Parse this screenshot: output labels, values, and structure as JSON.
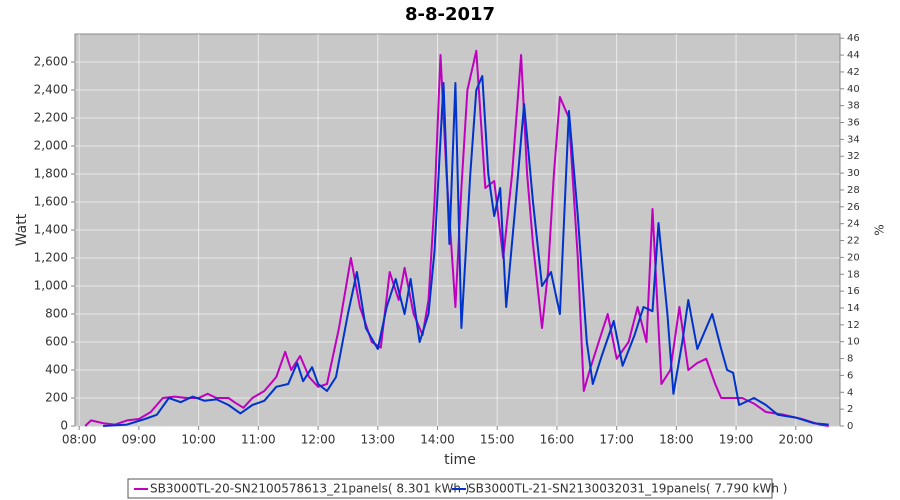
{
  "chart_data": {
    "type": "line",
    "title": "8-8-2017",
    "x_label": "time",
    "y_label": "Watt",
    "y2_label": "%",
    "xlim": [
      7.93,
      20.74
    ],
    "xticks": [
      {
        "value": 8,
        "label": "08:00"
      },
      {
        "value": 9,
        "label": "09:00"
      },
      {
        "value": 10,
        "label": "10:00"
      },
      {
        "value": 11,
        "label": "11:00"
      },
      {
        "value": 12,
        "label": "12:00"
      },
      {
        "value": 13,
        "label": "13:00"
      },
      {
        "value": 14,
        "label": "14:00"
      },
      {
        "value": 15,
        "label": "15:00"
      },
      {
        "value": 16,
        "label": "16:00"
      },
      {
        "value": 17,
        "label": "17:00"
      },
      {
        "value": 18,
        "label": "18:00"
      },
      {
        "value": 19,
        "label": "19:00"
      },
      {
        "value": 20,
        "label": "20:00"
      }
    ],
    "ylim": [
      0,
      2800
    ],
    "yticks": [
      0,
      200,
      400,
      600,
      800,
      {
        "value": 1000,
        "label": "1,000"
      },
      {
        "value": 1200,
        "label": "1,200"
      },
      {
        "value": 1400,
        "label": "1,400"
      },
      {
        "value": 1600,
        "label": "1,600"
      },
      {
        "value": 1800,
        "label": "1,800"
      },
      {
        "value": 2000,
        "label": "2,000"
      },
      {
        "value": 2200,
        "label": "2,200"
      },
      {
        "value": 2400,
        "label": "2,400"
      },
      {
        "value": 2600,
        "label": "2,600"
      }
    ],
    "y2lim": [
      0,
      46.5
    ],
    "y2ticks": [
      0,
      2,
      4,
      6,
      8,
      10,
      12,
      14,
      16,
      18,
      20,
      22,
      24,
      26,
      28,
      30,
      32,
      34,
      36,
      38,
      40,
      42,
      44,
      46
    ],
    "grid": true,
    "legend": "bottom",
    "series": [
      {
        "name": "SB3000TL-20-SN2100578613_21panels( 8.301 kWh )",
        "color": "#c000c0",
        "x": [
          8.1,
          8.2,
          8.4,
          8.6,
          8.8,
          9.0,
          9.2,
          9.4,
          9.6,
          9.8,
          10.0,
          10.15,
          10.3,
          10.5,
          10.6,
          10.75,
          10.9,
          11.1,
          11.3,
          11.45,
          11.55,
          11.7,
          11.85,
          12.0,
          12.15,
          12.35,
          12.55,
          12.7,
          12.9,
          13.05,
          13.2,
          13.35,
          13.45,
          13.6,
          13.75,
          13.85,
          13.95,
          14.05,
          14.15,
          14.3,
          14.4,
          14.5,
          14.65,
          14.8,
          14.95,
          15.1,
          15.25,
          15.4,
          15.5,
          15.6,
          15.75,
          15.85,
          15.95,
          16.05,
          16.2,
          16.35,
          16.45,
          16.55,
          16.7,
          16.85,
          17.0,
          17.2,
          17.35,
          17.5,
          17.6,
          17.75,
          17.9,
          18.05,
          18.2,
          18.35,
          18.5,
          18.65,
          18.75,
          18.9,
          19.1,
          19.3,
          19.5,
          19.8,
          20.1,
          20.4,
          20.55
        ],
        "values": [
          0,
          40,
          20,
          10,
          40,
          50,
          100,
          200,
          210,
          200,
          200,
          230,
          200,
          200,
          170,
          130,
          200,
          250,
          350,
          530,
          400,
          500,
          350,
          280,
          300,
          700,
          1200,
          850,
          600,
          560,
          1100,
          900,
          1130,
          800,
          650,
          900,
          1600,
          2650,
          1800,
          850,
          1700,
          2400,
          2680,
          1700,
          1750,
          1200,
          1800,
          2650,
          1800,
          1300,
          700,
          1100,
          1800,
          2350,
          2200,
          1200,
          250,
          400,
          600,
          800,
          480,
          600,
          850,
          600,
          1550,
          300,
          400,
          850,
          400,
          450,
          480,
          300,
          200,
          200,
          200,
          160,
          100,
          80,
          50,
          10,
          0
        ]
      },
      {
        "name": "SB3000TL-21-SN2130032031_19panels( 7.790 kWh )",
        "color": "#0033cc",
        "x": [
          8.4,
          8.8,
          9.1,
          9.3,
          9.5,
          9.7,
          9.9,
          10.1,
          10.3,
          10.5,
          10.7,
          10.9,
          11.1,
          11.3,
          11.5,
          11.65,
          11.75,
          11.9,
          12.0,
          12.15,
          12.3,
          12.5,
          12.65,
          12.8,
          13.0,
          13.15,
          13.3,
          13.45,
          13.55,
          13.7,
          13.85,
          13.95,
          14.1,
          14.2,
          14.3,
          14.4,
          14.55,
          14.65,
          14.75,
          14.85,
          14.95,
          15.05,
          15.15,
          15.3,
          15.45,
          15.6,
          15.75,
          15.9,
          16.05,
          16.2,
          16.35,
          16.5,
          16.6,
          16.75,
          16.95,
          17.1,
          17.3,
          17.45,
          17.6,
          17.7,
          17.85,
          17.95,
          18.1,
          18.2,
          18.35,
          18.45,
          18.6,
          18.75,
          18.85,
          18.95,
          19.05,
          19.3,
          19.5,
          19.7,
          20.0,
          20.3,
          20.55
        ],
        "values": [
          0,
          10,
          50,
          80,
          200,
          170,
          210,
          180,
          190,
          150,
          90,
          150,
          180,
          280,
          300,
          450,
          320,
          420,
          300,
          250,
          350,
          800,
          1100,
          700,
          550,
          850,
          1050,
          800,
          1050,
          600,
          800,
          1250,
          2450,
          1300,
          2450,
          700,
          1800,
          2400,
          2500,
          1800,
          1500,
          1700,
          850,
          1550,
          2300,
          1600,
          1000,
          1100,
          800,
          2250,
          1500,
          600,
          300,
          500,
          750,
          430,
          650,
          850,
          820,
          1450,
          800,
          230,
          600,
          900,
          550,
          650,
          800,
          550,
          400,
          380,
          150,
          200,
          150,
          80,
          60,
          20,
          10
        ]
      }
    ]
  }
}
